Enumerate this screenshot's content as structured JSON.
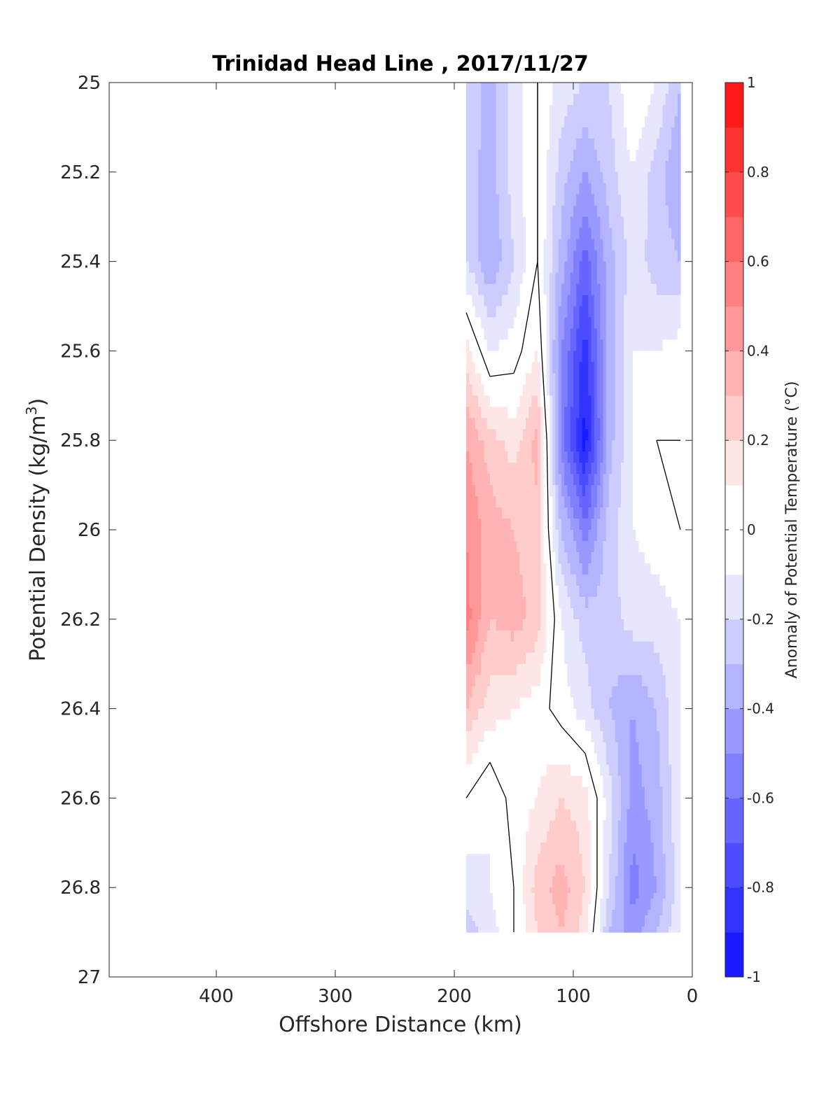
{
  "chart_data": {
    "type": "heatmap",
    "subtype": "filled-contour",
    "title": "Trinidad Head Line , 2017/11/27",
    "xlabel": "Offshore Distance (km)",
    "ylabel_main": "Potential Density (kg/m",
    "ylabel_sup": "3",
    "ylabel_end": ")",
    "colorbar_label": "Anomaly of Potential Temperature (°C)",
    "x_reversed": true,
    "y_reversed": true,
    "xlim": [
      0,
      490
    ],
    "ylim": [
      25,
      27
    ],
    "xticks": [
      400,
      300,
      200,
      100,
      0
    ],
    "xtick_labels": [
      "400",
      "300",
      "200",
      "100",
      "0"
    ],
    "yticks": [
      25,
      25.2,
      25.4,
      25.6,
      25.8,
      26,
      26.2,
      26.4,
      26.6,
      26.8,
      27
    ],
    "ytick_labels": [
      "25",
      "25.2",
      "25.4",
      "25.6",
      "25.8",
      "26",
      "26.2",
      "26.4",
      "26.6",
      "26.8",
      "27"
    ],
    "colorbar": {
      "range": [
        -1,
        1
      ],
      "levels": [
        -1,
        -0.9,
        -0.8,
        -0.7,
        -0.6,
        -0.5,
        -0.4,
        -0.3,
        -0.2,
        -0.1,
        0.1,
        0.2,
        0.3,
        0.4,
        0.5,
        0.6,
        0.7,
        0.8,
        0.9,
        1
      ],
      "colors": [
        "#0000ff",
        "#1a1aff",
        "#3333ff",
        "#4d4dff",
        "#6666ff",
        "#8080ff",
        "#9999ff",
        "#b3b3ff",
        "#ccccff",
        "#e6e6ff",
        "#ffffff",
        "#ffe6e6",
        "#ffcccc",
        "#ffb3b3",
        "#ff9999",
        "#ff8080",
        "#ff6666",
        "#ff4d4d",
        "#ff3333",
        "#ff1a1a",
        "#ff0000"
      ],
      "ticks": [
        -1,
        -0.8,
        -0.6,
        -0.4,
        -0.2,
        0,
        0.2,
        0.4,
        0.6,
        0.8,
        1
      ],
      "tick_labels": [
        "-1",
        "-0.8",
        "-0.6",
        "-0.4",
        "-0.2",
        "0",
        "0.2",
        "0.4",
        "0.6",
        "0.8",
        "1"
      ]
    },
    "x": [
      190,
      170,
      150,
      130,
      110,
      90,
      70,
      50,
      30,
      10
    ],
    "y": [
      25.0,
      25.2,
      25.4,
      25.6,
      25.8,
      26.0,
      26.2,
      26.4,
      26.6,
      26.8,
      26.9
    ],
    "z": [
      [
        -0.2,
        -0.35,
        -0.15,
        0.0,
        -0.15,
        -0.2,
        -0.2,
        0.0,
        -0.1,
        -0.3
      ],
      [
        -0.25,
        -0.35,
        -0.15,
        0.0,
        -0.25,
        -0.4,
        -0.25,
        -0.1,
        -0.25,
        -0.4
      ],
      [
        -0.2,
        -0.4,
        -0.2,
        0.0,
        -0.35,
        -0.65,
        -0.35,
        -0.15,
        -0.25,
        -0.3
      ],
      [
        0.15,
        -0.1,
        -0.05,
        0.1,
        -0.5,
        -0.85,
        -0.35,
        -0.1,
        -0.1,
        -0.05
      ],
      [
        0.4,
        0.25,
        0.15,
        0.35,
        -0.55,
        -0.95,
        -0.35,
        -0.1,
        0.0,
        0.0
      ],
      [
        0.5,
        0.35,
        0.3,
        0.25,
        -0.3,
        -0.55,
        -0.25,
        -0.1,
        -0.05,
        0.0
      ],
      [
        0.55,
        0.3,
        0.35,
        0.25,
        -0.1,
        -0.25,
        -0.25,
        -0.15,
        -0.15,
        -0.1
      ],
      [
        0.3,
        0.15,
        0.1,
        0.05,
        -0.05,
        -0.15,
        -0.3,
        -0.4,
        -0.3,
        -0.1
      ],
      [
        0.0,
        -0.1,
        0.05,
        0.1,
        0.2,
        0.15,
        -0.15,
        -0.45,
        -0.35,
        -0.1
      ],
      [
        -0.15,
        -0.1,
        0.0,
        0.25,
        0.35,
        0.2,
        -0.2,
        -0.55,
        -0.4,
        -0.15
      ],
      [
        -0.25,
        -0.15,
        0.0,
        0.2,
        0.3,
        0.15,
        -0.3,
        -0.45,
        -0.3,
        -0.1
      ]
    ]
  }
}
